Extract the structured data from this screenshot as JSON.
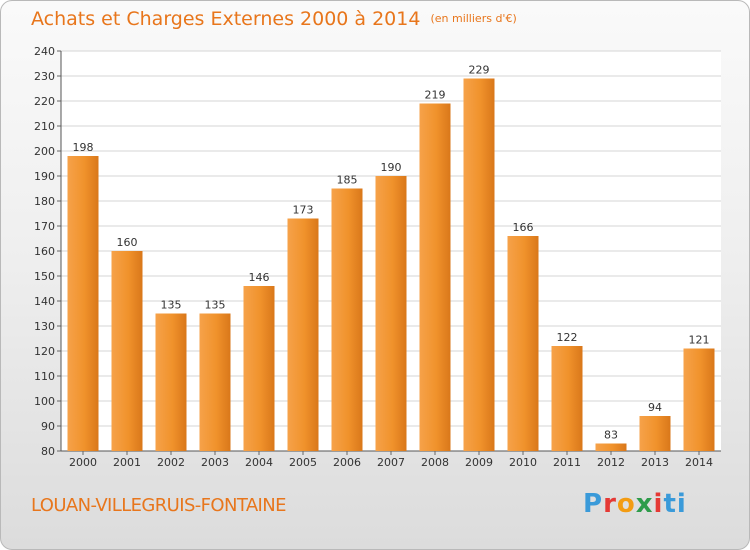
{
  "chart_data": {
    "type": "bar",
    "title": "Achats et Charges Externes 2000 à 2014",
    "subtitle": "(en milliers d'€)",
    "categories": [
      "2000",
      "2001",
      "2002",
      "2003",
      "2004",
      "2005",
      "2006",
      "2007",
      "2008",
      "2009",
      "2010",
      "2011",
      "2012",
      "2013",
      "2014"
    ],
    "values": [
      198,
      160,
      135,
      135,
      146,
      173,
      185,
      190,
      219,
      229,
      166,
      122,
      83,
      94,
      121
    ],
    "ylim": [
      80,
      240
    ],
    "yticks": [
      80,
      90,
      100,
      110,
      120,
      130,
      140,
      150,
      160,
      170,
      180,
      190,
      200,
      210,
      220,
      230,
      240
    ],
    "grid": true,
    "bar_color": "#f0922b",
    "xlabel": "",
    "ylabel": ""
  },
  "location": "LOUAN-VILLEGRUIS-FONTAINE",
  "brand": {
    "p1": "P",
    "p2": "r",
    "p3": "o",
    "p4": "x",
    "p5": "i",
    "p6": "ti"
  }
}
